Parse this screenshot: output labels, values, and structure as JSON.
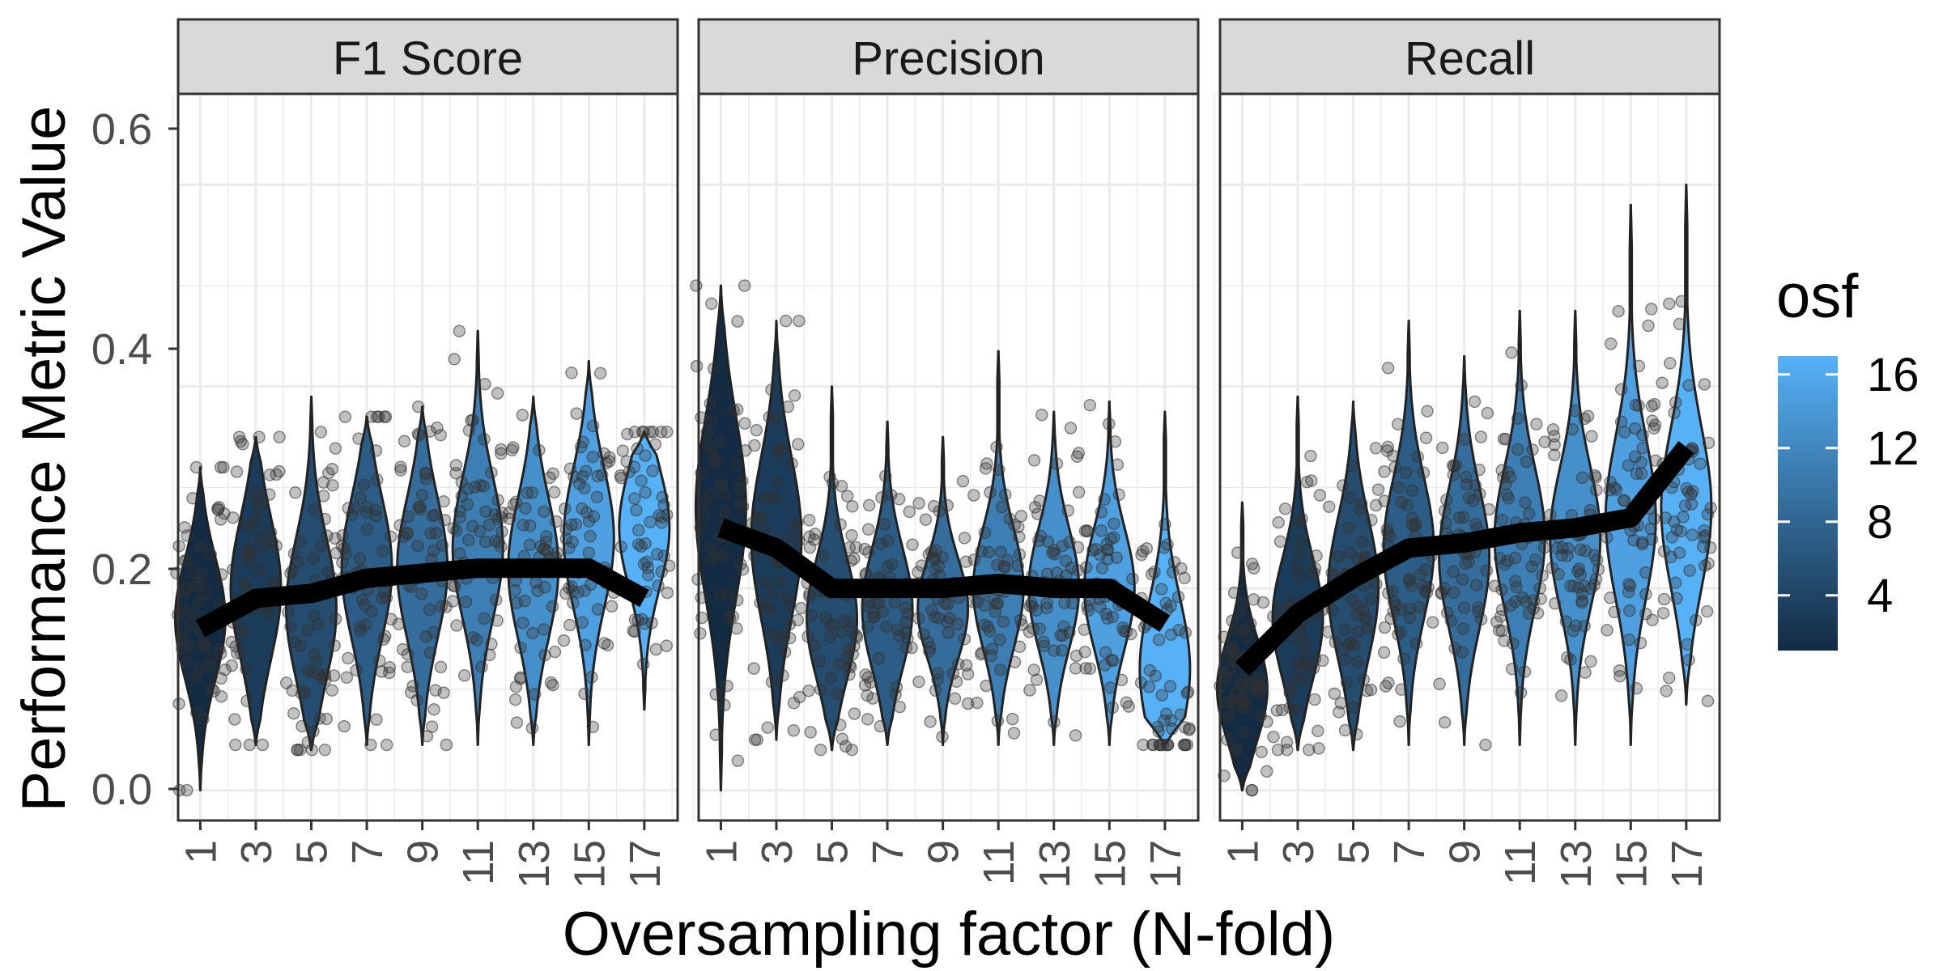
{
  "chart_data": {
    "type": "violin",
    "xlabel": "Oversampling factor (N-fold)",
    "ylabel": "Performance Metric Value",
    "ylim": [
      -0.03,
      0.69
    ],
    "y_ticks": [
      "0.0",
      "0.2",
      "0.4",
      "0.6"
    ],
    "y_tick_values": [
      0.0,
      0.2,
      0.4,
      0.6
    ],
    "categories": [
      "1",
      "3",
      "5",
      "7",
      "9",
      "11",
      "13",
      "15",
      "17"
    ],
    "x_values": [
      1,
      3,
      5,
      7,
      9,
      11,
      13,
      15,
      17
    ],
    "grid": true,
    "legend": {
      "title": "osf",
      "position": "right",
      "type": "colorbar",
      "range": [
        1,
        17
      ],
      "ticks": [
        "4",
        "8",
        "12",
        "16"
      ],
      "tick_values": [
        4,
        8,
        12,
        16
      ],
      "color_low": "#132B43",
      "color_high": "#56B1F7"
    },
    "point_color": "#333333",
    "point_alpha": 0.3,
    "line_color": "#000000",
    "facets": [
      {
        "name": "F1 Score",
        "mean_line": [
          0.16,
          0.19,
          0.195,
          0.21,
          0.215,
          0.22,
          0.22,
          0.22,
          0.19
        ],
        "violins": [
          {
            "min": 0.0,
            "max": 0.32,
            "mode": 0.17,
            "spread": 0.06
          },
          {
            "min": 0.045,
            "max": 0.35,
            "mode": 0.2,
            "spread": 0.07
          },
          {
            "min": 0.04,
            "max": 0.39,
            "mode": 0.18,
            "spread": 0.07
          },
          {
            "min": 0.045,
            "max": 0.37,
            "mode": 0.22,
            "spread": 0.07
          },
          {
            "min": 0.045,
            "max": 0.38,
            "mode": 0.22,
            "spread": 0.07
          },
          {
            "min": 0.045,
            "max": 0.455,
            "mode": 0.24,
            "spread": 0.07
          },
          {
            "min": 0.045,
            "max": 0.39,
            "mode": 0.22,
            "spread": 0.07
          },
          {
            "min": 0.045,
            "max": 0.425,
            "mode": 0.25,
            "spread": 0.07
          },
          {
            "min": 0.08,
            "max": 0.355,
            "mode": 0.26,
            "spread": 0.06
          }
        ]
      },
      {
        "name": "Precision",
        "mean_line": [
          0.26,
          0.24,
          0.2,
          0.2,
          0.2,
          0.205,
          0.2,
          0.2,
          0.165
        ],
        "violins": [
          {
            "min": 0.0,
            "max": 0.5,
            "mode": 0.28,
            "spread": 0.09
          },
          {
            "min": 0.05,
            "max": 0.465,
            "mode": 0.25,
            "spread": 0.08
          },
          {
            "min": 0.04,
            "max": 0.4,
            "mode": 0.17,
            "spread": 0.06
          },
          {
            "min": 0.045,
            "max": 0.365,
            "mode": 0.18,
            "spread": 0.06
          },
          {
            "min": 0.045,
            "max": 0.35,
            "mode": 0.18,
            "spread": 0.05
          },
          {
            "min": 0.045,
            "max": 0.435,
            "mode": 0.2,
            "spread": 0.06
          },
          {
            "min": 0.045,
            "max": 0.375,
            "mode": 0.2,
            "spread": 0.06
          },
          {
            "min": 0.045,
            "max": 0.385,
            "mode": 0.2,
            "spread": 0.06
          },
          {
            "min": 0.045,
            "max": 0.375,
            "mode": 0.12,
            "spread": 0.07
          }
        ]
      },
      {
        "name": "Recall",
        "mean_line": [
          0.12,
          0.175,
          0.21,
          0.24,
          0.245,
          0.255,
          0.26,
          0.27,
          0.34
        ],
        "violins": [
          {
            "min": 0.0,
            "max": 0.285,
            "mode": 0.1,
            "spread": 0.05
          },
          {
            "min": 0.04,
            "max": 0.39,
            "mode": 0.17,
            "spread": 0.06
          },
          {
            "min": 0.04,
            "max": 0.385,
            "mode": 0.2,
            "spread": 0.07
          },
          {
            "min": 0.045,
            "max": 0.465,
            "mode": 0.24,
            "spread": 0.07
          },
          {
            "min": 0.045,
            "max": 0.43,
            "mode": 0.23,
            "spread": 0.07
          },
          {
            "min": 0.045,
            "max": 0.475,
            "mode": 0.25,
            "spread": 0.07
          },
          {
            "min": 0.045,
            "max": 0.475,
            "mode": 0.25,
            "spread": 0.07
          },
          {
            "min": 0.045,
            "max": 0.58,
            "mode": 0.27,
            "spread": 0.08
          },
          {
            "min": 0.085,
            "max": 0.6,
            "mode": 0.28,
            "spread": 0.08
          }
        ]
      }
    ]
  }
}
